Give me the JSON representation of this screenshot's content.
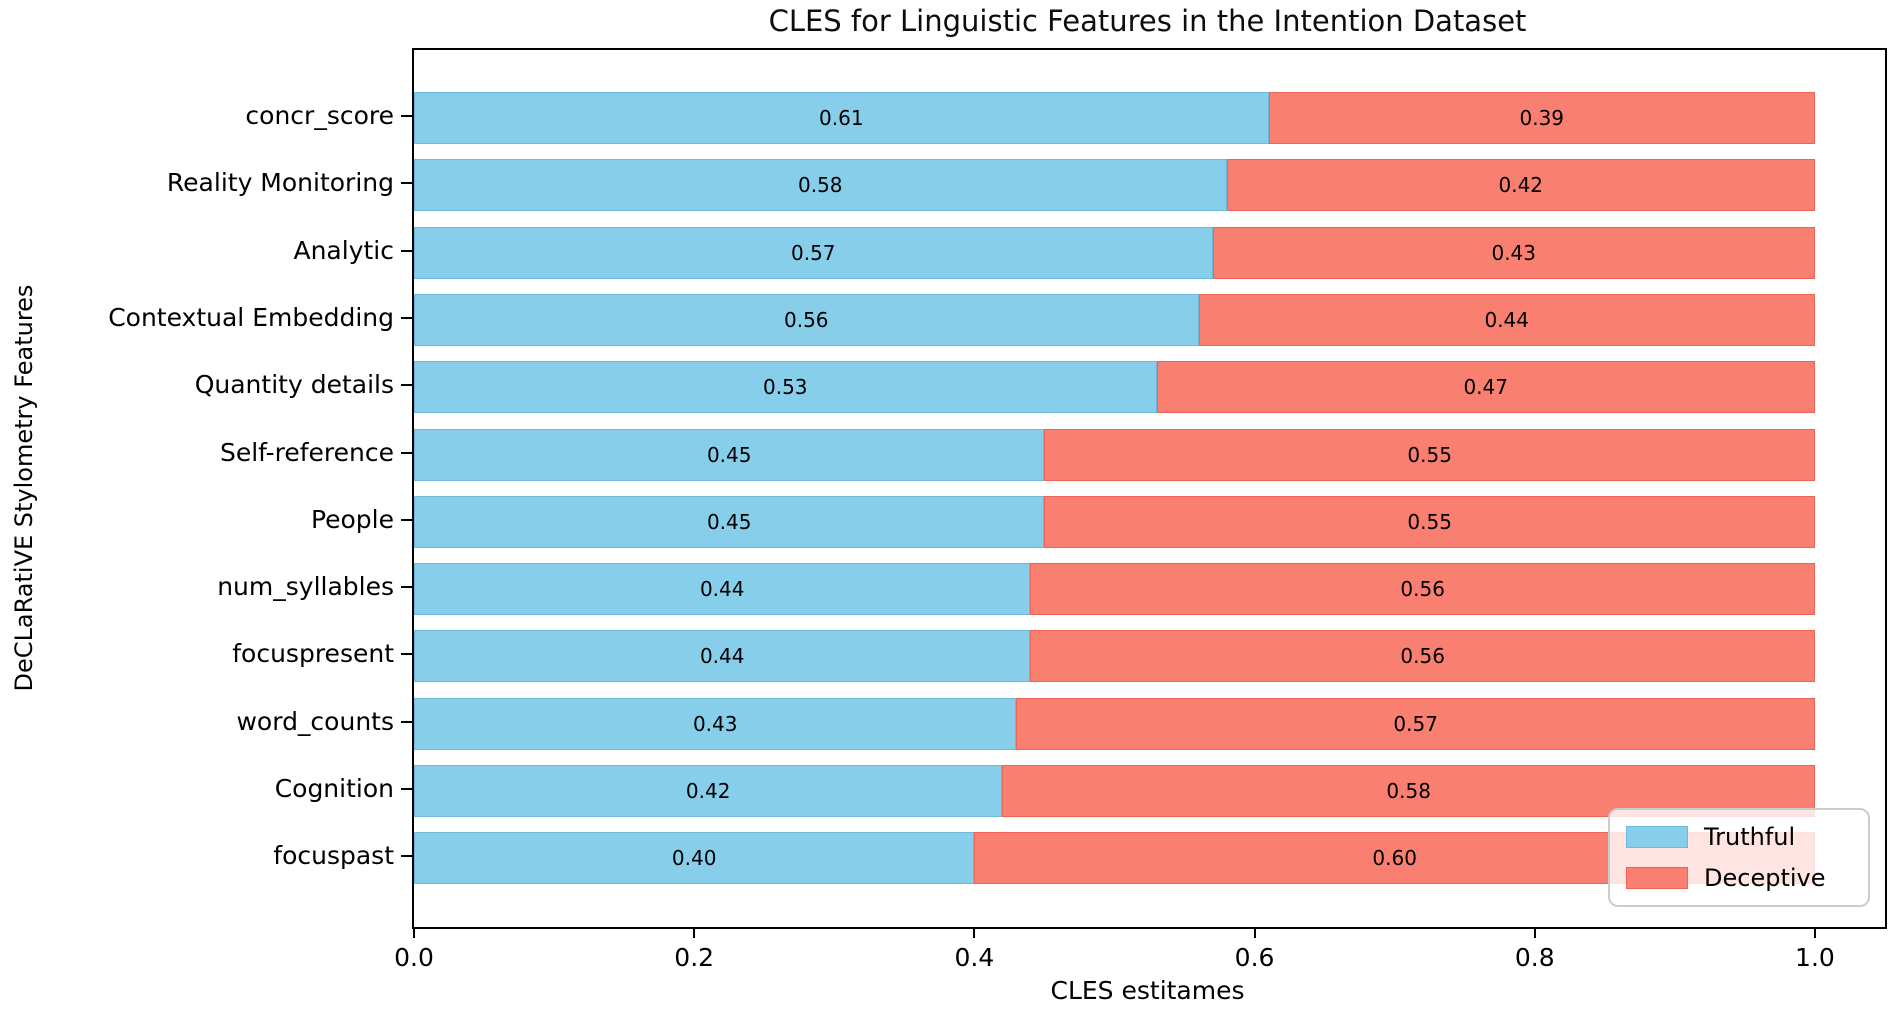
{
  "chart_data": {
    "type": "bar",
    "orientation": "horizontal",
    "stacked": true,
    "title": "CLES for Linguistic Features in the Intention Dataset",
    "xlabel": "CLES estitames",
    "ylabel": "DeCLaRatiVE Stylometry Features",
    "categories": [
      "concr_score",
      "Reality Monitoring",
      "Analytic",
      "Contextual Embedding",
      "Quantity details",
      "Self-reference",
      "People",
      "num_syllables",
      "focuspresent",
      "word_counts",
      "Cognition",
      "focuspast"
    ],
    "series": [
      {
        "name": "Truthful",
        "color": "#87CEEB",
        "edge_color": "#6CBBDF",
        "values": [
          0.61,
          0.58,
          0.57,
          0.56,
          0.53,
          0.45,
          0.45,
          0.44,
          0.44,
          0.43,
          0.42,
          0.4
        ]
      },
      {
        "name": "Deceptive",
        "color": "#F97F70",
        "edge_color": "#EF6354",
        "values": [
          0.39,
          0.42,
          0.43,
          0.44,
          0.47,
          0.55,
          0.55,
          0.56,
          0.56,
          0.57,
          0.58,
          0.6
        ]
      }
    ],
    "x_ticks": [
      "0.0",
      "0.2",
      "0.4",
      "0.6",
      "0.8",
      "1.0"
    ],
    "x_tick_values": [
      0.0,
      0.2,
      0.4,
      0.6,
      0.8,
      1.0
    ],
    "xlim": [
      0,
      1.05
    ],
    "grid": false,
    "legend_position": "lower right",
    "value_label_format": "2dp"
  }
}
